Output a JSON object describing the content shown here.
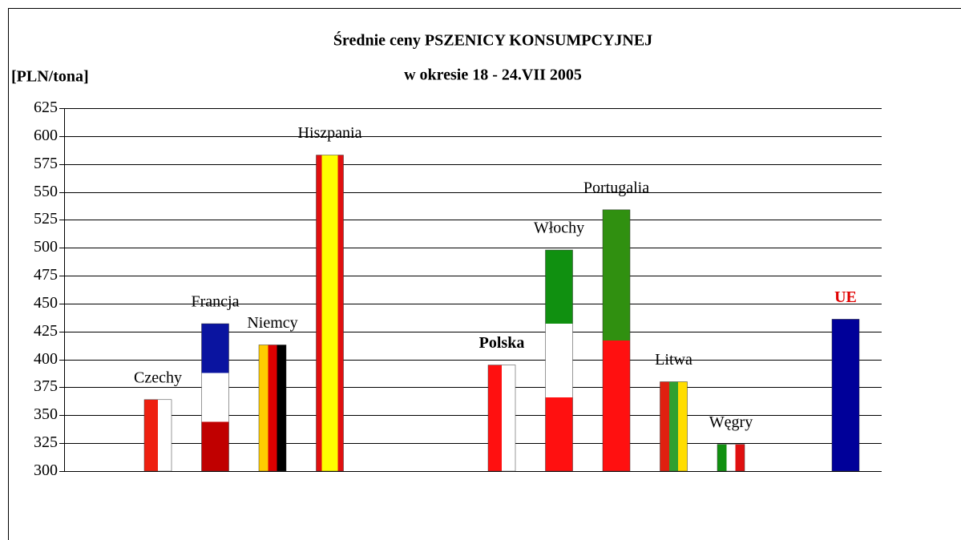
{
  "chart_data": {
    "type": "bar",
    "title": "Średnie ceny PSZENICY KONSUMPCYJNEJ",
    "subtitle": "w okresie 18 - 24.VII 2005",
    "y_label": "[PLN/tona]",
    "categories": [
      "Czechy",
      "Francja",
      "Niemcy",
      "Hiszpania",
      null,
      null,
      "Polska",
      "Włochy",
      "Portugalia",
      "Litwa",
      "Węgry",
      null,
      "UE"
    ],
    "values": [
      364,
      432,
      413,
      583,
      null,
      null,
      395,
      498,
      534,
      380,
      324,
      null,
      436
    ],
    "bar_colors": [
      {
        "direction": "vertical",
        "colors": [
          "#ee2010",
          "#ffffff"
        ]
      },
      {
        "direction": "horizontal",
        "colors": [
          "#0a14a0",
          "#ffffff",
          "#c00000"
        ]
      },
      {
        "direction": "vertical",
        "colors": [
          "#ffcc00",
          "#dd0000",
          "#000000"
        ]
      },
      {
        "direction": "vertical",
        "colors": [
          "#e01010",
          "#ffff00",
          "#ffff00",
          "#ffff00",
          "#e01010"
        ]
      },
      null,
      null,
      {
        "direction": "vertical",
        "colors": [
          "#ff1010",
          "#ffffff"
        ]
      },
      {
        "direction": "horizontal",
        "colors": [
          "#109010",
          "#ffffff",
          "#ff1010"
        ]
      },
      {
        "direction": "horizontal",
        "colors": [
          "#309010",
          "#ff1010"
        ]
      },
      {
        "direction": "vertical",
        "colors": [
          "#e02010",
          "#30a030",
          "#ffdd00"
        ]
      },
      {
        "direction": "vertical",
        "colors": [
          "#109010",
          "#ffffff",
          "#e01010"
        ]
      },
      null,
      {
        "direction": "vertical",
        "colors": [
          "#000099"
        ]
      }
    ],
    "ylim": [
      300,
      625
    ],
    "yticks": [
      300,
      325,
      350,
      375,
      400,
      425,
      450,
      475,
      500,
      525,
      550,
      575,
      600,
      625
    ],
    "grid": true
  }
}
